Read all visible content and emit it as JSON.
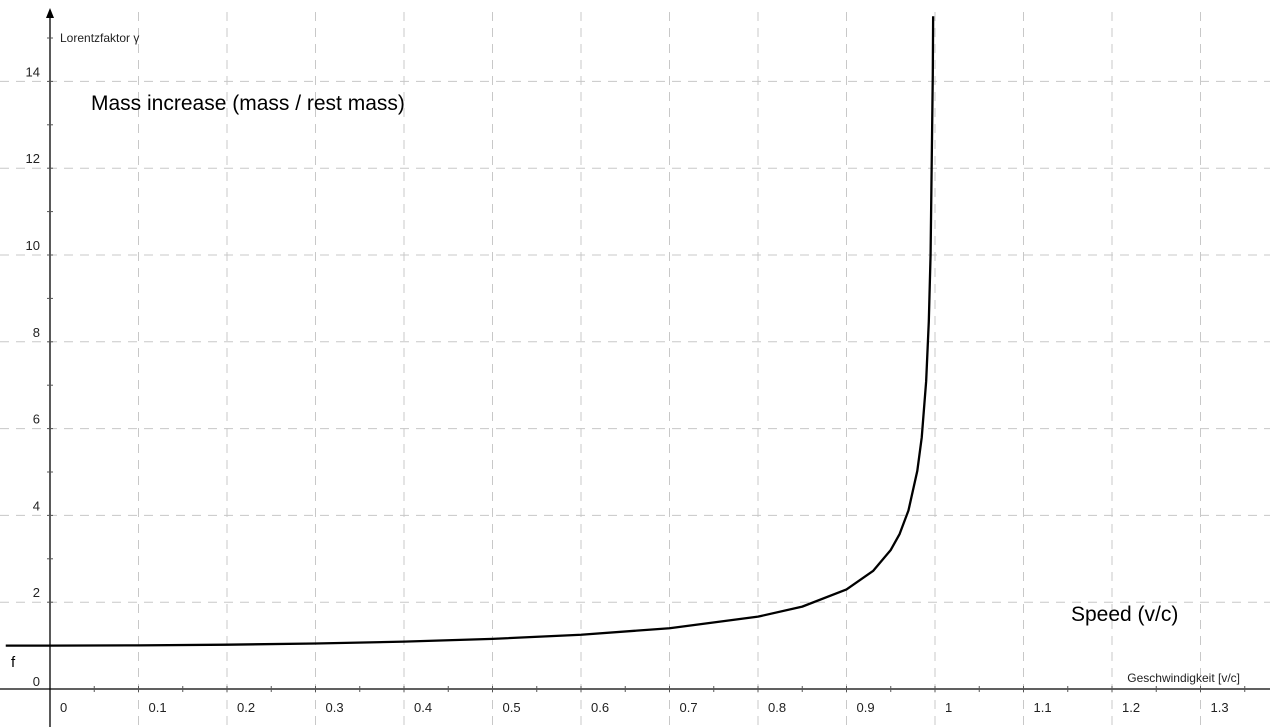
{
  "chart_data": {
    "type": "line",
    "title": "",
    "xlabel": "Geschwindigkeit [v/c]",
    "ylabel": "Lorentzfaktor γ",
    "xlim": [
      -0.05,
      1.37
    ],
    "ylim": [
      -0.2,
      15.5
    ],
    "grid": true,
    "x_ticks": [
      "0",
      "0.1",
      "0.2",
      "0.3",
      "0.4",
      "0.5",
      "0.6",
      "0.7",
      "0.8",
      "0.9",
      "1",
      "1.1",
      "1.2",
      "1.3"
    ],
    "y_ticks": [
      "0",
      "2",
      "4",
      "6",
      "8",
      "10",
      "12",
      "14"
    ],
    "series": [
      {
        "name": "f",
        "color": "#000000",
        "x": [
          -0.05,
          0,
          0.1,
          0.2,
          0.3,
          0.4,
          0.5,
          0.6,
          0.7,
          0.8,
          0.85,
          0.9,
          0.93,
          0.95,
          0.96,
          0.97,
          0.98,
          0.985,
          0.99,
          0.993,
          0.995,
          0.9975,
          0.9979
        ],
        "y": [
          1.0,
          1.0,
          1.005,
          1.021,
          1.048,
          1.091,
          1.155,
          1.25,
          1.4,
          1.667,
          1.898,
          2.294,
          2.72,
          3.203,
          3.571,
          4.113,
          5.025,
          5.795,
          7.089,
          8.466,
          10.01,
          14.15,
          15.5
        ]
      }
    ],
    "annotations": [
      "Mass increase (mass / rest mass)",
      "Speed (v/c)"
    ]
  }
}
